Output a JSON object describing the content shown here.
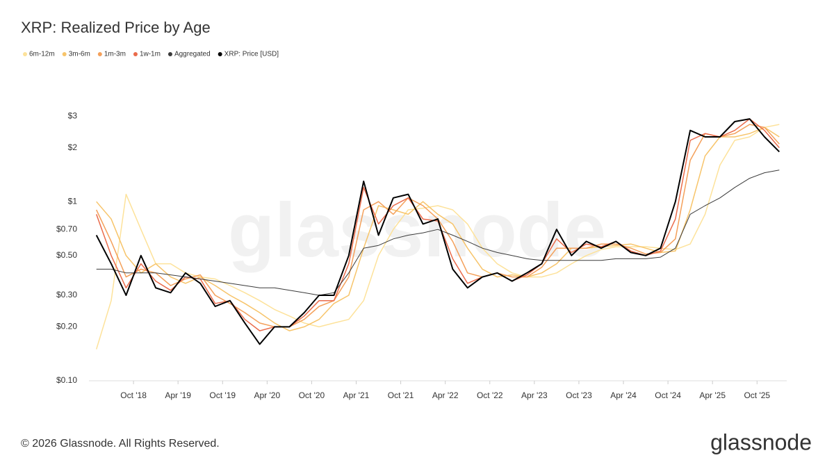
{
  "chart_data": {
    "type": "line",
    "title": "XRP: Realized Price by Age",
    "log_scale": true,
    "grid": false,
    "legend": "top-left",
    "x": [
      "2018-05",
      "2018-07",
      "2018-09",
      "2018-11",
      "2019-01",
      "2019-03",
      "2019-05",
      "2019-07",
      "2019-09",
      "2019-11",
      "2020-01",
      "2020-03",
      "2020-05",
      "2020-07",
      "2020-09",
      "2020-11",
      "2021-01",
      "2021-03",
      "2021-05",
      "2021-07",
      "2021-09",
      "2021-11",
      "2022-01",
      "2022-03",
      "2022-05",
      "2022-07",
      "2022-09",
      "2022-11",
      "2023-01",
      "2023-03",
      "2023-05",
      "2023-07",
      "2023-09",
      "2023-11",
      "2024-01",
      "2024-03",
      "2024-05",
      "2024-07",
      "2024-09",
      "2024-11",
      "2025-01",
      "2025-03",
      "2025-05",
      "2025-07",
      "2025-09",
      "2025-11",
      "2026-01"
    ],
    "xlim": [
      "2018-04",
      "2026-02"
    ],
    "xticks": [
      {
        "value": "2018-10",
        "label": "Oct '18"
      },
      {
        "value": "2019-04",
        "label": "Apr '19"
      },
      {
        "value": "2019-10",
        "label": "Oct '19"
      },
      {
        "value": "2020-04",
        "label": "Apr '20"
      },
      {
        "value": "2020-10",
        "label": "Oct '20"
      },
      {
        "value": "2021-04",
        "label": "Apr '21"
      },
      {
        "value": "2021-10",
        "label": "Oct '21"
      },
      {
        "value": "2022-04",
        "label": "Apr '22"
      },
      {
        "value": "2022-10",
        "label": "Oct '22"
      },
      {
        "value": "2023-04",
        "label": "Apr '23"
      },
      {
        "value": "2023-10",
        "label": "Oct '23"
      },
      {
        "value": "2024-04",
        "label": "Apr '24"
      },
      {
        "value": "2024-10",
        "label": "Oct '24"
      },
      {
        "value": "2025-04",
        "label": "Apr '25"
      },
      {
        "value": "2025-10",
        "label": "Oct '25"
      }
    ],
    "ylim": [
      0.1,
      3.5
    ],
    "yticks": [
      {
        "value": 0.1,
        "label": "$0.10"
      },
      {
        "value": 0.2,
        "label": "$0.20"
      },
      {
        "value": 0.3,
        "label": "$0.30"
      },
      {
        "value": 0.5,
        "label": "$0.50"
      },
      {
        "value": 0.7,
        "label": "$0.70"
      },
      {
        "value": 1,
        "label": "$1"
      },
      {
        "value": 2,
        "label": "$2"
      },
      {
        "value": 3,
        "label": "$3"
      }
    ],
    "series": [
      {
        "name": "6m-12m",
        "color": "#fde29a",
        "width": 1.5,
        "values": [
          0.15,
          0.28,
          1.1,
          0.7,
          0.45,
          0.45,
          0.4,
          0.38,
          0.37,
          0.34,
          0.31,
          0.28,
          0.25,
          0.23,
          0.21,
          0.2,
          0.21,
          0.22,
          0.28,
          0.5,
          0.7,
          0.9,
          0.92,
          0.95,
          0.9,
          0.75,
          0.55,
          0.45,
          0.4,
          0.38,
          0.38,
          0.4,
          0.45,
          0.5,
          0.54,
          0.56,
          0.56,
          0.56,
          0.55,
          0.54,
          0.58,
          0.85,
          1.6,
          2.2,
          2.3,
          2.6,
          2.7
        ]
      },
      {
        "name": "3m-6m",
        "color": "#f7c46a",
        "width": 1.5,
        "values": [
          1.0,
          0.8,
          0.5,
          0.4,
          0.45,
          0.38,
          0.35,
          0.38,
          0.34,
          0.3,
          0.27,
          0.24,
          0.21,
          0.19,
          0.2,
          0.22,
          0.27,
          0.3,
          0.55,
          0.95,
          0.9,
          0.85,
          1.0,
          0.85,
          0.75,
          0.55,
          0.42,
          0.38,
          0.39,
          0.38,
          0.4,
          0.45,
          0.55,
          0.55,
          0.56,
          0.57,
          0.58,
          0.55,
          0.52,
          0.53,
          0.9,
          1.8,
          2.3,
          2.3,
          2.4,
          2.6,
          2.3
        ]
      },
      {
        "name": "1m-3m",
        "color": "#f4a05a",
        "width": 1.5,
        "values": [
          0.9,
          0.6,
          0.38,
          0.42,
          0.4,
          0.34,
          0.37,
          0.39,
          0.3,
          0.27,
          0.24,
          0.21,
          0.2,
          0.2,
          0.22,
          0.26,
          0.28,
          0.38,
          0.9,
          1.0,
          0.85,
          1.05,
          0.95,
          0.8,
          0.6,
          0.4,
          0.38,
          0.4,
          0.38,
          0.38,
          0.43,
          0.55,
          0.55,
          0.55,
          0.58,
          0.58,
          0.55,
          0.51,
          0.52,
          0.62,
          1.7,
          2.4,
          2.3,
          2.4,
          2.7,
          2.6,
          2.1
        ]
      },
      {
        "name": "1w-1m",
        "color": "#ea6b4b",
        "width": 1.5,
        "values": [
          0.85,
          0.5,
          0.33,
          0.45,
          0.36,
          0.32,
          0.38,
          0.37,
          0.27,
          0.28,
          0.22,
          0.19,
          0.2,
          0.2,
          0.23,
          0.28,
          0.28,
          0.45,
          1.2,
          0.75,
          0.95,
          1.05,
          0.8,
          0.78,
          0.48,
          0.35,
          0.38,
          0.4,
          0.36,
          0.39,
          0.45,
          0.62,
          0.52,
          0.58,
          0.56,
          0.6,
          0.53,
          0.5,
          0.53,
          0.8,
          2.2,
          2.4,
          2.3,
          2.5,
          2.9,
          2.5,
          2.0
        ]
      },
      {
        "name": "Aggregated",
        "color": "#3a3a3a",
        "width": 1,
        "values": [
          0.42,
          0.42,
          0.4,
          0.4,
          0.4,
          0.39,
          0.38,
          0.37,
          0.36,
          0.35,
          0.34,
          0.33,
          0.33,
          0.32,
          0.31,
          0.3,
          0.31,
          0.4,
          0.55,
          0.57,
          0.62,
          0.65,
          0.67,
          0.7,
          0.65,
          0.6,
          0.55,
          0.52,
          0.5,
          0.48,
          0.47,
          0.47,
          0.47,
          0.47,
          0.47,
          0.48,
          0.48,
          0.48,
          0.49,
          0.55,
          0.85,
          0.95,
          1.05,
          1.2,
          1.35,
          1.45,
          1.5
        ]
      },
      {
        "name": "XRP: Price [USD]",
        "color": "#000000",
        "width": 2,
        "values": [
          0.65,
          0.45,
          0.3,
          0.5,
          0.33,
          0.31,
          0.4,
          0.35,
          0.26,
          0.28,
          0.21,
          0.16,
          0.2,
          0.2,
          0.24,
          0.3,
          0.3,
          0.5,
          1.3,
          0.65,
          1.05,
          1.1,
          0.75,
          0.8,
          0.42,
          0.33,
          0.38,
          0.4,
          0.36,
          0.4,
          0.45,
          0.7,
          0.5,
          0.6,
          0.55,
          0.6,
          0.52,
          0.5,
          0.55,
          1.0,
          2.5,
          2.3,
          2.3,
          2.8,
          2.9,
          2.3,
          1.9
        ]
      }
    ]
  },
  "watermark": "glassnode",
  "footer": {
    "copyright": "© 2026 Glassnode. All Rights Reserved.",
    "logo": "glassnode"
  }
}
